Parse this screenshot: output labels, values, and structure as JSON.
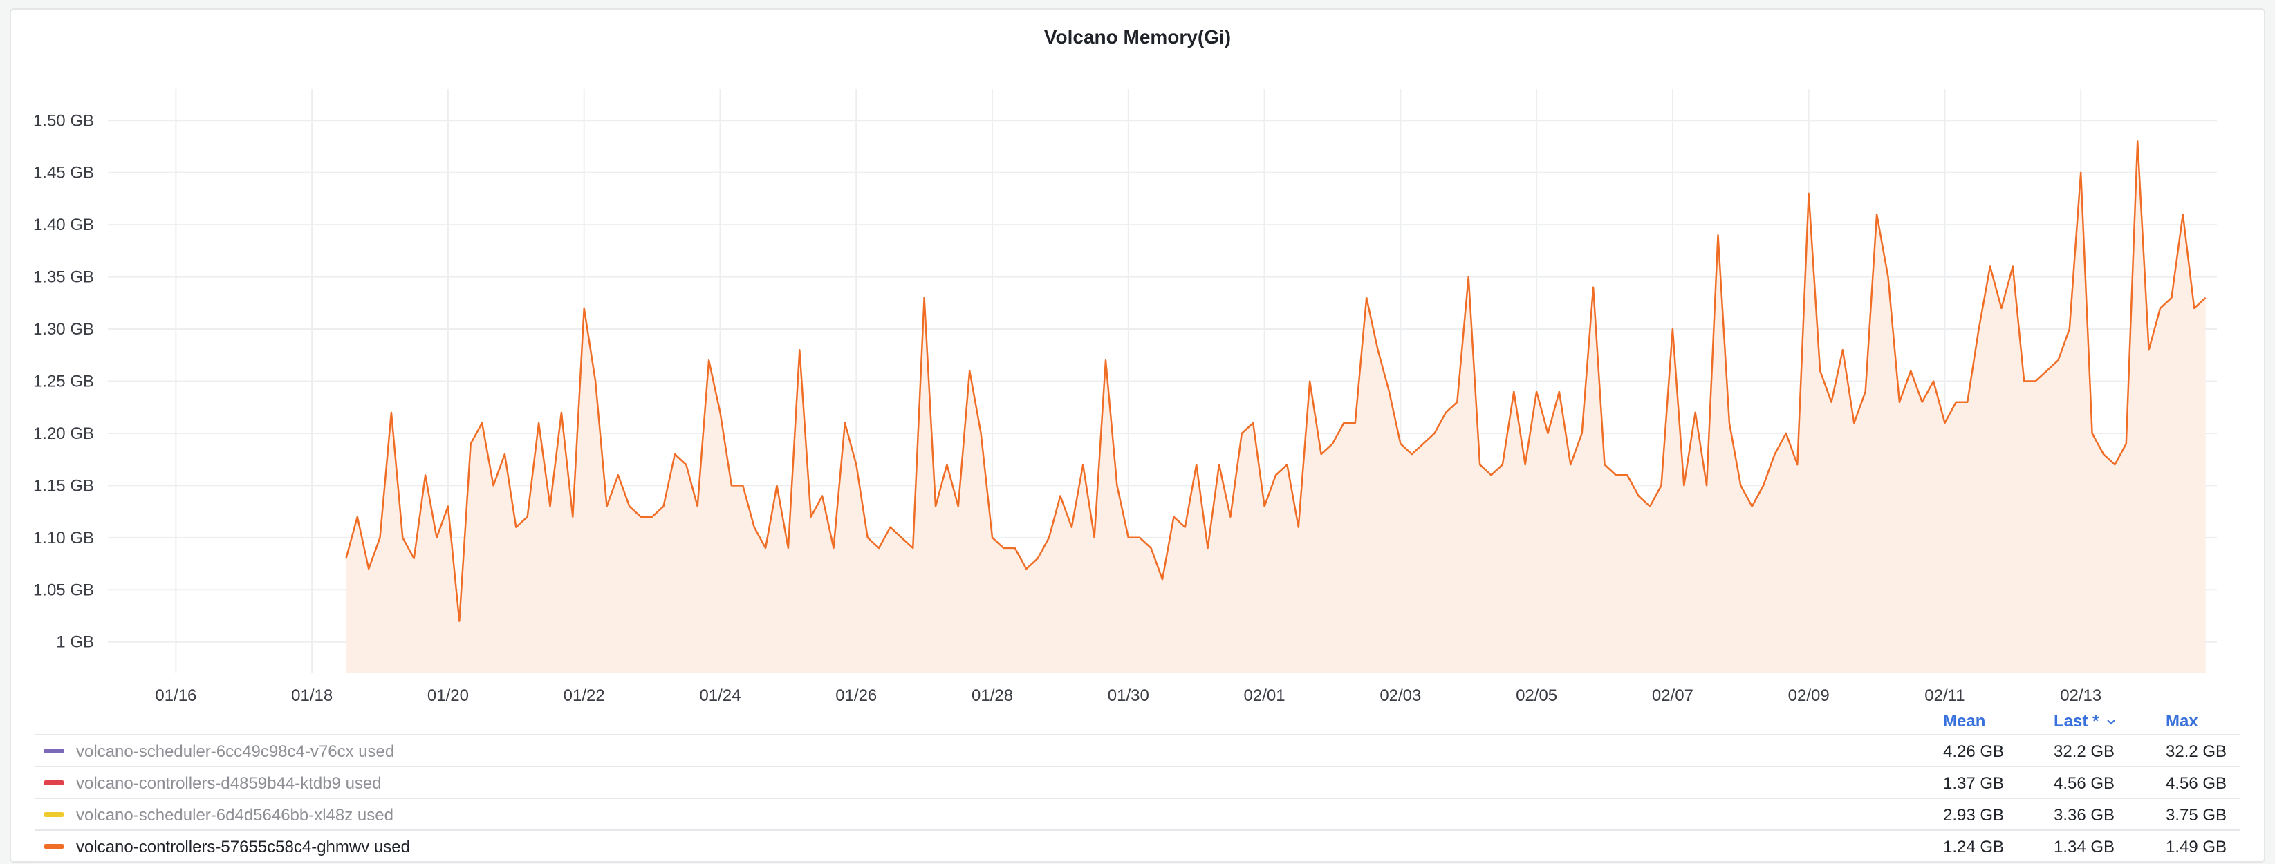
{
  "panel": {
    "title": "Volcano Memory(Gi)"
  },
  "legend": {
    "headers": {
      "mean": "Mean",
      "last": "Last *",
      "last_icon": "chevron-down-icon",
      "max": "Max"
    },
    "rows": [
      {
        "name": "volcano-scheduler-6cc49c98c4-v76cx used",
        "color": "#7b68b8",
        "mean": "4.26 GB",
        "last": "32.2 GB",
        "max": "32.2 GB",
        "active": false
      },
      {
        "name": "volcano-controllers-d4859b44-ktdb9 used",
        "color": "#e0414b",
        "mean": "1.37 GB",
        "last": "4.56 GB",
        "max": "4.56 GB",
        "active": false
      },
      {
        "name": "volcano-scheduler-6d4d5646bb-xl48z used",
        "color": "#eecb2c",
        "mean": "2.93 GB",
        "last": "3.36 GB",
        "max": "3.75 GB",
        "active": false
      },
      {
        "name": "volcano-controllers-57655c58c4-ghmwv used",
        "color": "#f06d25",
        "mean": "1.24 GB",
        "last": "1.34 GB",
        "max": "1.49 GB",
        "active": true
      }
    ]
  },
  "chart_data": {
    "type": "area",
    "y_unit": "GB",
    "ylim": [
      0.97,
      1.53
    ],
    "y_ticks": [
      {
        "v": 1.0,
        "label": "1 GB"
      },
      {
        "v": 1.05,
        "label": "1.05 GB"
      },
      {
        "v": 1.1,
        "label": "1.10 GB"
      },
      {
        "v": 1.15,
        "label": "1.15 GB"
      },
      {
        "v": 1.2,
        "label": "1.20 GB"
      },
      {
        "v": 1.25,
        "label": "1.25 GB"
      },
      {
        "v": 1.3,
        "label": "1.30 GB"
      },
      {
        "v": 1.35,
        "label": "1.35 GB"
      },
      {
        "v": 1.4,
        "label": "1.40 GB"
      },
      {
        "v": 1.45,
        "label": "1.45 GB"
      },
      {
        "v": 1.5,
        "label": "1.50 GB"
      }
    ],
    "x_axis": "date",
    "xlim": [
      "01/15",
      "02/15"
    ],
    "x_ticks": [
      "01/16",
      "01/18",
      "01/20",
      "01/22",
      "01/24",
      "01/26",
      "01/28",
      "01/30",
      "02/01",
      "02/03",
      "02/05",
      "02/07",
      "02/09",
      "02/11",
      "02/13"
    ],
    "grid": true,
    "line_color": "#f06d25",
    "fill_color": "#fdeee6",
    "series": [
      {
        "name": "volcano-controllers-57655c58c4-ghmwv used",
        "points": [
          [
            "01/18 12:00",
            1.08
          ],
          [
            "01/18 16:00",
            1.12
          ],
          [
            "01/18 20:00",
            1.07
          ],
          [
            "01/19 00:00",
            1.1
          ],
          [
            "01/19 04:00",
            1.22
          ],
          [
            "01/19 08:00",
            1.1
          ],
          [
            "01/19 12:00",
            1.08
          ],
          [
            "01/19 16:00",
            1.16
          ],
          [
            "01/19 20:00",
            1.1
          ],
          [
            "01/20 00:00",
            1.13
          ],
          [
            "01/20 04:00",
            1.02
          ],
          [
            "01/20 08:00",
            1.19
          ],
          [
            "01/20 12:00",
            1.21
          ],
          [
            "01/20 16:00",
            1.15
          ],
          [
            "01/20 20:00",
            1.18
          ],
          [
            "01/21 00:00",
            1.11
          ],
          [
            "01/21 04:00",
            1.12
          ],
          [
            "01/21 08:00",
            1.21
          ],
          [
            "01/21 12:00",
            1.13
          ],
          [
            "01/21 16:00",
            1.22
          ],
          [
            "01/21 20:00",
            1.12
          ],
          [
            "01/22 00:00",
            1.32
          ],
          [
            "01/22 04:00",
            1.25
          ],
          [
            "01/22 08:00",
            1.13
          ],
          [
            "01/22 12:00",
            1.16
          ],
          [
            "01/22 16:00",
            1.13
          ],
          [
            "01/22 20:00",
            1.12
          ],
          [
            "01/23 00:00",
            1.12
          ],
          [
            "01/23 04:00",
            1.13
          ],
          [
            "01/23 08:00",
            1.18
          ],
          [
            "01/23 12:00",
            1.17
          ],
          [
            "01/23 16:00",
            1.13
          ],
          [
            "01/23 20:00",
            1.27
          ],
          [
            "01/24 00:00",
            1.22
          ],
          [
            "01/24 04:00",
            1.15
          ],
          [
            "01/24 08:00",
            1.15
          ],
          [
            "01/24 12:00",
            1.11
          ],
          [
            "01/24 16:00",
            1.09
          ],
          [
            "01/24 20:00",
            1.15
          ],
          [
            "01/25 00:00",
            1.09
          ],
          [
            "01/25 04:00",
            1.28
          ],
          [
            "01/25 08:00",
            1.12
          ],
          [
            "01/25 12:00",
            1.14
          ],
          [
            "01/25 16:00",
            1.09
          ],
          [
            "01/25 20:00",
            1.21
          ],
          [
            "01/26 00:00",
            1.17
          ],
          [
            "01/26 04:00",
            1.1
          ],
          [
            "01/26 08:00",
            1.09
          ],
          [
            "01/26 12:00",
            1.11
          ],
          [
            "01/26 16:00",
            1.1
          ],
          [
            "01/26 20:00",
            1.09
          ],
          [
            "01/27 00:00",
            1.33
          ],
          [
            "01/27 04:00",
            1.13
          ],
          [
            "01/27 08:00",
            1.17
          ],
          [
            "01/27 12:00",
            1.13
          ],
          [
            "01/27 16:00",
            1.26
          ],
          [
            "01/27 20:00",
            1.2
          ],
          [
            "01/28 00:00",
            1.1
          ],
          [
            "01/28 04:00",
            1.09
          ],
          [
            "01/28 08:00",
            1.09
          ],
          [
            "01/28 12:00",
            1.07
          ],
          [
            "01/28 16:00",
            1.08
          ],
          [
            "01/28 20:00",
            1.1
          ],
          [
            "01/29 00:00",
            1.14
          ],
          [
            "01/29 04:00",
            1.11
          ],
          [
            "01/29 08:00",
            1.17
          ],
          [
            "01/29 12:00",
            1.1
          ],
          [
            "01/29 16:00",
            1.27
          ],
          [
            "01/29 20:00",
            1.15
          ],
          [
            "01/30 00:00",
            1.1
          ],
          [
            "01/30 04:00",
            1.1
          ],
          [
            "01/30 08:00",
            1.09
          ],
          [
            "01/30 12:00",
            1.06
          ],
          [
            "01/30 16:00",
            1.12
          ],
          [
            "01/30 20:00",
            1.11
          ],
          [
            "01/31 00:00",
            1.17
          ],
          [
            "01/31 04:00",
            1.09
          ],
          [
            "01/31 08:00",
            1.17
          ],
          [
            "01/31 12:00",
            1.12
          ],
          [
            "01/31 16:00",
            1.2
          ],
          [
            "01/31 20:00",
            1.21
          ],
          [
            "02/01 00:00",
            1.13
          ],
          [
            "02/01 04:00",
            1.16
          ],
          [
            "02/01 08:00",
            1.17
          ],
          [
            "02/01 12:00",
            1.11
          ],
          [
            "02/01 16:00",
            1.25
          ],
          [
            "02/01 20:00",
            1.18
          ],
          [
            "02/02 00:00",
            1.19
          ],
          [
            "02/02 04:00",
            1.21
          ],
          [
            "02/02 08:00",
            1.21
          ],
          [
            "02/02 12:00",
            1.33
          ],
          [
            "02/02 16:00",
            1.28
          ],
          [
            "02/02 20:00",
            1.24
          ],
          [
            "02/03 00:00",
            1.19
          ],
          [
            "02/03 04:00",
            1.18
          ],
          [
            "02/03 08:00",
            1.19
          ],
          [
            "02/03 12:00",
            1.2
          ],
          [
            "02/03 16:00",
            1.22
          ],
          [
            "02/03 20:00",
            1.23
          ],
          [
            "02/04 00:00",
            1.35
          ],
          [
            "02/04 04:00",
            1.17
          ],
          [
            "02/04 08:00",
            1.16
          ],
          [
            "02/04 12:00",
            1.17
          ],
          [
            "02/04 16:00",
            1.24
          ],
          [
            "02/04 20:00",
            1.17
          ],
          [
            "02/05 00:00",
            1.24
          ],
          [
            "02/05 04:00",
            1.2
          ],
          [
            "02/05 08:00",
            1.24
          ],
          [
            "02/05 12:00",
            1.17
          ],
          [
            "02/05 16:00",
            1.2
          ],
          [
            "02/05 20:00",
            1.34
          ],
          [
            "02/06 00:00",
            1.17
          ],
          [
            "02/06 04:00",
            1.16
          ],
          [
            "02/06 08:00",
            1.16
          ],
          [
            "02/06 12:00",
            1.14
          ],
          [
            "02/06 16:00",
            1.13
          ],
          [
            "02/06 20:00",
            1.15
          ],
          [
            "02/07 00:00",
            1.3
          ],
          [
            "02/07 04:00",
            1.15
          ],
          [
            "02/07 08:00",
            1.22
          ],
          [
            "02/07 12:00",
            1.15
          ],
          [
            "02/07 16:00",
            1.39
          ],
          [
            "02/07 20:00",
            1.21
          ],
          [
            "02/08 00:00",
            1.15
          ],
          [
            "02/08 04:00",
            1.13
          ],
          [
            "02/08 08:00",
            1.15
          ],
          [
            "02/08 12:00",
            1.18
          ],
          [
            "02/08 16:00",
            1.2
          ],
          [
            "02/08 20:00",
            1.17
          ],
          [
            "02/09 00:00",
            1.43
          ],
          [
            "02/09 04:00",
            1.26
          ],
          [
            "02/09 08:00",
            1.23
          ],
          [
            "02/09 12:00",
            1.28
          ],
          [
            "02/09 16:00",
            1.21
          ],
          [
            "02/09 20:00",
            1.24
          ],
          [
            "02/10 00:00",
            1.41
          ],
          [
            "02/10 04:00",
            1.35
          ],
          [
            "02/10 08:00",
            1.23
          ],
          [
            "02/10 12:00",
            1.26
          ],
          [
            "02/10 16:00",
            1.23
          ],
          [
            "02/10 20:00",
            1.25
          ],
          [
            "02/11 00:00",
            1.21
          ],
          [
            "02/11 04:00",
            1.23
          ],
          [
            "02/11 08:00",
            1.23
          ],
          [
            "02/11 12:00",
            1.3
          ],
          [
            "02/11 16:00",
            1.36
          ],
          [
            "02/11 20:00",
            1.32
          ],
          [
            "02/12 00:00",
            1.36
          ],
          [
            "02/12 04:00",
            1.25
          ],
          [
            "02/12 08:00",
            1.25
          ],
          [
            "02/12 12:00",
            1.26
          ],
          [
            "02/12 16:00",
            1.27
          ],
          [
            "02/12 20:00",
            1.3
          ],
          [
            "02/13 00:00",
            1.45
          ],
          [
            "02/13 04:00",
            1.2
          ],
          [
            "02/13 08:00",
            1.18
          ],
          [
            "02/13 12:00",
            1.17
          ],
          [
            "02/13 16:00",
            1.19
          ],
          [
            "02/13 20:00",
            1.48
          ],
          [
            "02/14 00:00",
            1.28
          ],
          [
            "02/14 04:00",
            1.32
          ],
          [
            "02/14 08:00",
            1.33
          ],
          [
            "02/14 12:00",
            1.41
          ],
          [
            "02/14 16:00",
            1.32
          ],
          [
            "02/14 20:00",
            1.33
          ]
        ]
      }
    ]
  }
}
